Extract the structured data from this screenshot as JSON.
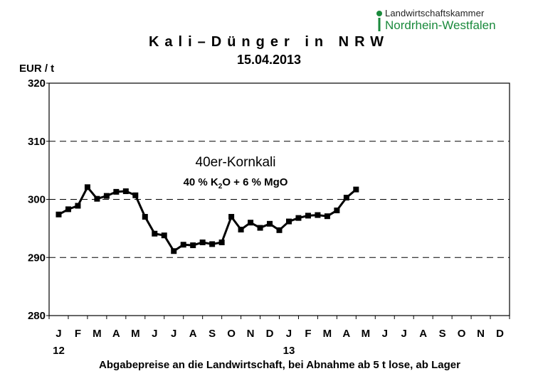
{
  "logo": {
    "line1": "Landwirtschaftskammer",
    "line2": "Nordrhein-Westfalen",
    "accent_color": "#1a8a3c"
  },
  "header": {
    "title": "Kali–Dünger in NRW",
    "date": "15.04.2013"
  },
  "footer": {
    "note": "Abgabepreise an die Landwirtschaft, bei Abnahme ab 5 t lose, ab Lager"
  },
  "chart_data": {
    "type": "line",
    "title": "Kali–Dünger in NRW",
    "subtitle": "15.04.2013",
    "ylabel": "EUR / t",
    "xlabel": "",
    "ylim": [
      280,
      320
    ],
    "yticks": [
      280,
      290,
      300,
      310,
      320
    ],
    "grid_dashed_at": [
      290,
      300,
      310
    ],
    "month_labels": [
      "J",
      "F",
      "M",
      "A",
      "M",
      "J",
      "J",
      "A",
      "S",
      "O",
      "N",
      "D",
      "J",
      "F",
      "M",
      "A",
      "M",
      "J",
      "J",
      "A",
      "S",
      "O",
      "N",
      "D"
    ],
    "year_labels": [
      {
        "label": "12",
        "month_index": 0
      },
      {
        "label": "13",
        "month_index": 12
      }
    ],
    "annotation": {
      "line1": "40er-Kornkali",
      "line2_parts": [
        "40 %  K",
        "2",
        "O + 6 % MgO"
      ]
    },
    "series": [
      {
        "name": "40er-Kornkali",
        "color": "#000000",
        "x": [
          0,
          0.5,
          1,
          1.5,
          2,
          2.5,
          3,
          3.5,
          4,
          4.5,
          5,
          5.5,
          6,
          6.5,
          7,
          7.5,
          8,
          8.5,
          9,
          9.5,
          10,
          10.5,
          11,
          11.5,
          12,
          12.5,
          13,
          13.5,
          14,
          14.5,
          15,
          15.5
        ],
        "values": [
          297.4,
          298.3,
          298.9,
          302.1,
          300.1,
          300.6,
          301.3,
          301.4,
          300.7,
          297.0,
          294.1,
          293.8,
          291.1,
          292.2,
          292.1,
          292.6,
          292.3,
          292.6,
          297.0,
          294.8,
          296.0,
          295.1,
          295.8,
          294.7,
          296.2,
          296.8,
          297.2,
          297.3,
          297.1,
          298.1,
          300.3,
          301.7
        ]
      }
    ]
  }
}
